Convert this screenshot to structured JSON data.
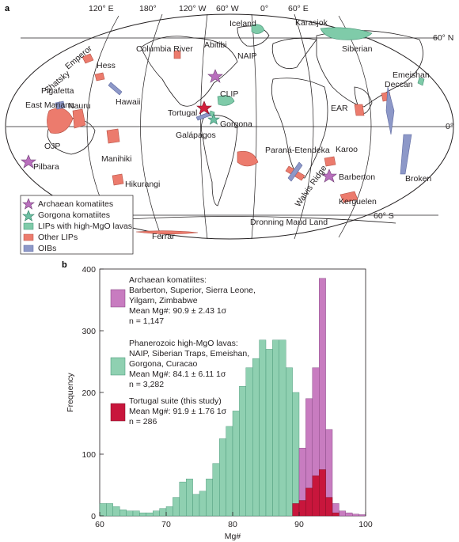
{
  "panel_a": {
    "label": "a",
    "lon_labels": [
      "120° E",
      "180°",
      "120° W",
      "60° W",
      "0°",
      "60° E"
    ],
    "lat_labels": [
      "60° N",
      "0°",
      "60° S"
    ],
    "regions": [
      "Karasjok",
      "Iceland",
      "Abitibi",
      "NAIP",
      "Siberian",
      "Columbia River",
      "Hess",
      "Shatsky",
      "Emperor",
      "Pigafetta",
      "Emeishan",
      "Deccan",
      "East Mariana",
      "Nauru",
      "Hawaii",
      "CLIP",
      "Tortugal",
      "Gorgona",
      "Galápagos",
      "EAR",
      "OJP",
      "Manihiki",
      "Paraná-Etendeka",
      "Karoo",
      "Pilbara",
      "Hikurangi",
      "Walvis Ridge",
      "Barberton",
      "Broken",
      "Kerguelen",
      "Dronning Maud Land",
      "Ferrar"
    ],
    "legend": [
      {
        "label": "Archaean komatiites",
        "color": "#b96fbd",
        "symbol": "star"
      },
      {
        "label": "Gorgona komatiites",
        "color": "#6cbfa2",
        "symbol": "star"
      },
      {
        "label": "LIPs with high-MgO lavas",
        "color": "#7fcba9",
        "symbol": "box"
      },
      {
        "label": "Other LIPs",
        "color": "#ec7b6d",
        "symbol": "box"
      },
      {
        "label": "OIBs",
        "color": "#8d98c8",
        "symbol": "box"
      }
    ],
    "colors": {
      "lip_high": "#7fcba9",
      "lip_other": "#ec7b6d",
      "oib": "#8d98c8",
      "archaean": "#b96fbd",
      "tortugal": "#d21f3c"
    }
  },
  "panel_b": {
    "label": "b",
    "legend": [
      {
        "color": "#c87cc0",
        "lines": [
          "Archaean komatiites:",
          "Barberton, Superior, Sierra Leone,",
          "Yilgarn, Zimbabwe",
          "Mean Mg#: 90.9 ± 2.43 1σ",
          "n = 1,147"
        ]
      },
      {
        "color": "#8fd0b1",
        "lines": [
          "Phanerozoic high-MgO lavas:",
          "NAIP, Siberian Traps, Emeishan,",
          "Gorgona, Curacao",
          "Mean Mg#: 84.1 ± 6.11 1σ",
          "n = 3,282"
        ]
      },
      {
        "color": "#c8163c",
        "lines": [
          "Tortugal suite (this study)",
          "Mean Mg#: 91.9 ± 1.76 1σ",
          "n = 286"
        ]
      }
    ]
  },
  "chart_data": {
    "type": "bar",
    "xlabel": "Mg#",
    "ylabel": "Frequency",
    "xlim": [
      60,
      100
    ],
    "ylim": [
      0,
      400
    ],
    "x_ticks": [
      60,
      70,
      80,
      90,
      100
    ],
    "y_ticks": [
      0,
      100,
      200,
      300,
      400
    ],
    "bin_width": 1,
    "bin_starts": [
      60,
      61,
      62,
      63,
      64,
      65,
      66,
      67,
      68,
      69,
      70,
      71,
      72,
      73,
      74,
      75,
      76,
      77,
      78,
      79,
      80,
      81,
      82,
      83,
      84,
      85,
      86,
      87,
      88,
      89,
      90,
      91,
      92,
      93,
      94,
      95,
      96,
      97,
      98,
      99
    ],
    "series": [
      {
        "name": "Phanerozoic high-MgO lavas",
        "color": "#8fd0b1",
        "values": [
          20,
          20,
          15,
          10,
          8,
          8,
          5,
          5,
          8,
          12,
          15,
          30,
          55,
          60,
          35,
          40,
          60,
          85,
          125,
          145,
          170,
          210,
          240,
          255,
          285,
          270,
          285,
          285,
          240,
          200,
          90,
          55,
          40,
          22,
          0,
          0,
          0,
          0,
          0,
          0
        ]
      },
      {
        "name": "Archaean komatiites",
        "color": "#c87cc0",
        "values": [
          0,
          0,
          0,
          0,
          0,
          0,
          0,
          0,
          0,
          0,
          0,
          0,
          0,
          0,
          0,
          0,
          0,
          0,
          0,
          0,
          0,
          0,
          0,
          0,
          0,
          0,
          0,
          0,
          0,
          0,
          110,
          190,
          240,
          385,
          140,
          20,
          8,
          5,
          3,
          2
        ]
      },
      {
        "name": "Tortugal suite (this study)",
        "color": "#c8163c",
        "values": [
          0,
          0,
          0,
          0,
          0,
          0,
          0,
          0,
          0,
          0,
          0,
          0,
          0,
          0,
          0,
          0,
          0,
          0,
          0,
          0,
          0,
          0,
          0,
          0,
          0,
          0,
          0,
          0,
          0,
          20,
          25,
          45,
          65,
          75,
          30,
          5,
          0,
          0,
          0,
          0
        ]
      }
    ]
  }
}
